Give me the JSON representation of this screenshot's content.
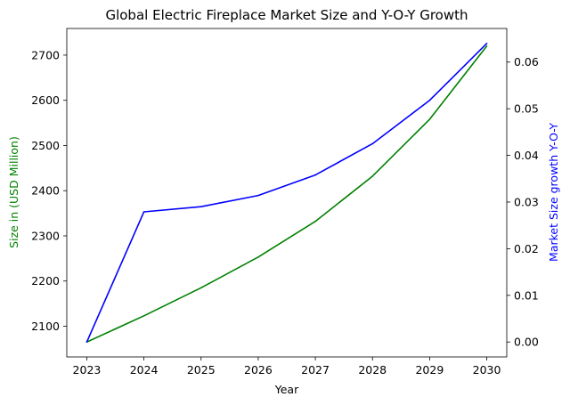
{
  "chart_data": {
    "type": "line",
    "title": "Global Electric Fireplace Market Size and Y-O-Y Growth",
    "xlabel": "Year",
    "ylabel_left": "Size in (USD Million)",
    "ylabel_right": "Market Size growth Y-O-Y",
    "x": [
      2023,
      2024,
      2025,
      2026,
      2027,
      2028,
      2029,
      2030
    ],
    "x_ticks": [
      "2023",
      "2024",
      "2025",
      "2026",
      "2027",
      "2028",
      "2029",
      "2030"
    ],
    "xlim": [
      2022.65,
      2030.35
    ],
    "left_axis": {
      "ylim": [
        2032,
        2759
      ],
      "ticks": [
        2100,
        2200,
        2300,
        2400,
        2500,
        2600,
        2700
      ],
      "tick_labels": [
        "2100",
        "2200",
        "2300",
        "2400",
        "2500",
        "2600",
        "2700"
      ],
      "color": "#008000"
    },
    "right_axis": {
      "ylim": [
        -0.0032,
        0.0672
      ],
      "ticks": [
        0.0,
        0.01,
        0.02,
        0.03,
        0.04,
        0.05,
        0.06
      ],
      "tick_labels": [
        "0.00",
        "0.01",
        "0.02",
        "0.03",
        "0.04",
        "0.05",
        "0.06"
      ],
      "color": "#0000ff"
    },
    "series": [
      {
        "axis": "left",
        "color": "#008000",
        "values": [
          2065,
          2123,
          2185,
          2253,
          2332,
          2432,
          2558,
          2720
        ]
      },
      {
        "axis": "right",
        "color": "#0000ff",
        "values": [
          0.0,
          0.0279,
          0.029,
          0.0314,
          0.0358,
          0.0425,
          0.0518,
          0.064
        ]
      }
    ],
    "grid": false,
    "legend": "none"
  }
}
